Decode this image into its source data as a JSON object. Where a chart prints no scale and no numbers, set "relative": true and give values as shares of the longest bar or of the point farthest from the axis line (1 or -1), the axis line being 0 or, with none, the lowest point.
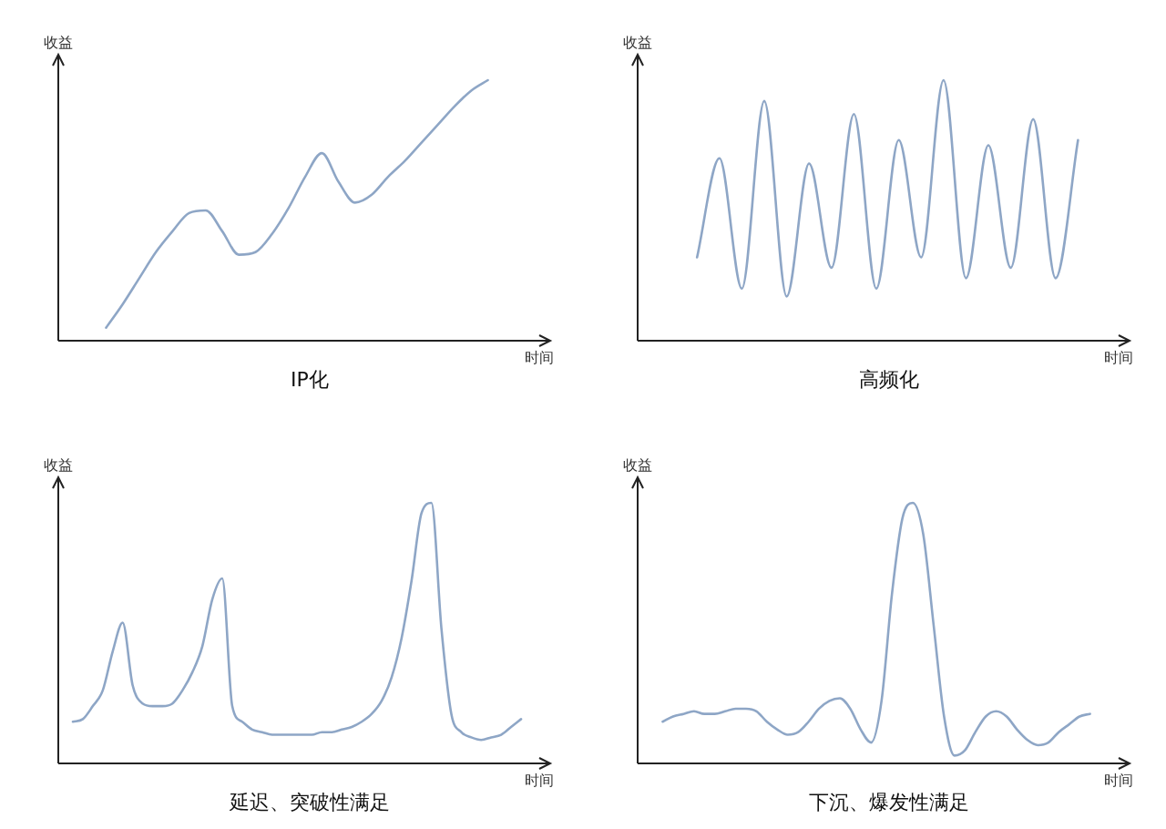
{
  "chart_data": [
    {
      "type": "line",
      "relative": true,
      "title": "IP化",
      "xlabel": "时间",
      "ylabel": "收益",
      "categories": [
        null,
        null,
        null,
        null,
        null,
        null,
        null,
        null,
        null,
        null,
        null,
        null,
        null,
        null,
        null,
        null,
        null,
        null,
        null,
        null,
        null,
        null,
        null,
        null,
        null,
        null,
        null,
        null
      ],
      "series": [
        {
          "color": "#8ea6c6",
          "values": [
            null,
            null,
            0.05,
            0.14,
            0.24,
            0.34,
            0.42,
            0.49,
            0.5,
            0.42,
            0.33,
            0.34,
            0.41,
            0.51,
            0.63,
            0.72,
            0.61,
            0.53,
            0.56,
            0.63,
            0.69,
            0.76,
            0.83,
            0.9,
            0.96,
            1,
            null,
            null
          ]
        }
      ]
    },
    {
      "type": "line",
      "relative": true,
      "title": "高频化",
      "xlabel": "时间",
      "ylabel": "收益",
      "categories": [
        null,
        null,
        null,
        null,
        null,
        null,
        null,
        null,
        null,
        null,
        null,
        null,
        null,
        null,
        null,
        null,
        null,
        null,
        null,
        null,
        null
      ],
      "series": [
        {
          "color": "#8ea6c6",
          "values": [
            null,
            null,
            0.32,
            0.7,
            0.2,
            0.92,
            0.17,
            0.68,
            0.28,
            0.87,
            0.2,
            0.77,
            0.32,
            1,
            0.24,
            0.75,
            0.28,
            0.85,
            0.24,
            0.77,
            null
          ]
        }
      ]
    },
    {
      "type": "line",
      "relative": true,
      "title": "延迟、突破性满足",
      "xlabel": "时间",
      "ylabel": "收益",
      "categories": [
        null,
        null,
        null,
        null,
        null,
        null,
        null,
        null,
        null,
        null,
        null,
        null,
        null,
        null,
        null,
        null,
        null,
        null,
        null,
        null,
        null,
        null,
        null,
        null,
        null,
        null,
        null,
        null,
        null,
        null,
        null,
        null,
        null,
        null,
        null,
        null,
        null,
        null,
        null,
        null,
        null,
        null,
        null,
        null,
        null,
        null
      ],
      "series": [
        {
          "color": "#8ea6c6",
          "values": [
            0.16,
            0.17,
            0.22,
            0.28,
            0.43,
            0.54,
            0.3,
            0.23,
            0.22,
            0.22,
            0.23,
            0.28,
            0.35,
            0.45,
            0.63,
            0.71,
            0.22,
            0.16,
            0.13,
            0.12,
            0.11,
            0.11,
            0.11,
            0.11,
            0.11,
            0.12,
            0.12,
            0.13,
            0.14,
            0.16,
            0.19,
            0.24,
            0.33,
            0.48,
            0.7,
            0.96,
            1,
            0.52,
            0.19,
            0.12,
            0.1,
            0.09,
            0.1,
            0.11,
            0.14,
            0.17
          ]
        }
      ]
    },
    {
      "type": "line",
      "relative": true,
      "title": "下沉、爆发性满足",
      "xlabel": "时间",
      "ylabel": "收益",
      "categories": [
        null,
        null,
        null,
        null,
        null,
        null,
        null,
        null,
        null,
        null,
        null,
        null,
        null,
        null,
        null,
        null,
        null,
        null,
        null,
        null,
        null,
        null,
        null,
        null,
        null,
        null,
        null,
        null,
        null,
        null,
        null,
        null,
        null,
        null,
        null,
        null,
        null,
        null,
        null,
        null,
        null,
        null,
        null,
        null
      ],
      "series": [
        {
          "color": "#8ea6c6",
          "values": [
            null,
            0.16,
            0.18,
            0.19,
            0.2,
            0.19,
            0.19,
            0.2,
            0.21,
            0.21,
            0.2,
            0.16,
            0.13,
            0.11,
            0.12,
            0.16,
            0.21,
            0.24,
            0.25,
            0.21,
            0.13,
            0.08,
            0.24,
            0.65,
            0.94,
            1,
            0.88,
            0.53,
            0.18,
            0.03,
            0.05,
            0.12,
            0.18,
            0.2,
            0.18,
            0.13,
            0.09,
            0.07,
            0.08,
            0.12,
            0.15,
            0.18,
            0.19,
            null
          ]
        }
      ]
    }
  ]
}
